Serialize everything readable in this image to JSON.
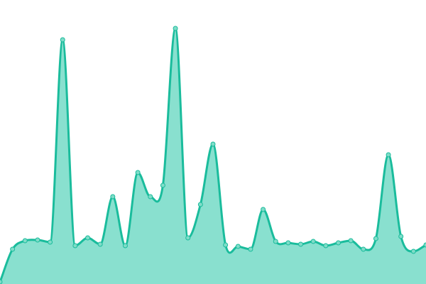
{
  "chart_data": {
    "type": "area",
    "title": "",
    "xlabel": "",
    "ylabel": "",
    "x": [
      0,
      1,
      2,
      3,
      4,
      5,
      6,
      7,
      8,
      9,
      10,
      11,
      12,
      13,
      14,
      15,
      16,
      17,
      18,
      19,
      20,
      21,
      22,
      23,
      24,
      25,
      26,
      27,
      28,
      29,
      30,
      31,
      32,
      33,
      34
    ],
    "values": [
      3,
      49,
      61,
      62,
      59,
      344,
      54,
      65,
      56,
      123,
      54,
      157,
      123,
      139,
      360,
      65,
      112,
      197,
      55,
      53,
      49,
      105,
      60,
      58,
      56,
      60,
      54,
      58,
      61,
      49,
      64,
      182,
      67,
      46,
      55
    ],
    "ylim": [
      0,
      400
    ],
    "grid": false,
    "axes_visible": false,
    "legend": "none",
    "colors": {
      "line": "#1abc9c",
      "fill": "#89e0cf",
      "marker_fill": "#7fdcc8"
    }
  }
}
